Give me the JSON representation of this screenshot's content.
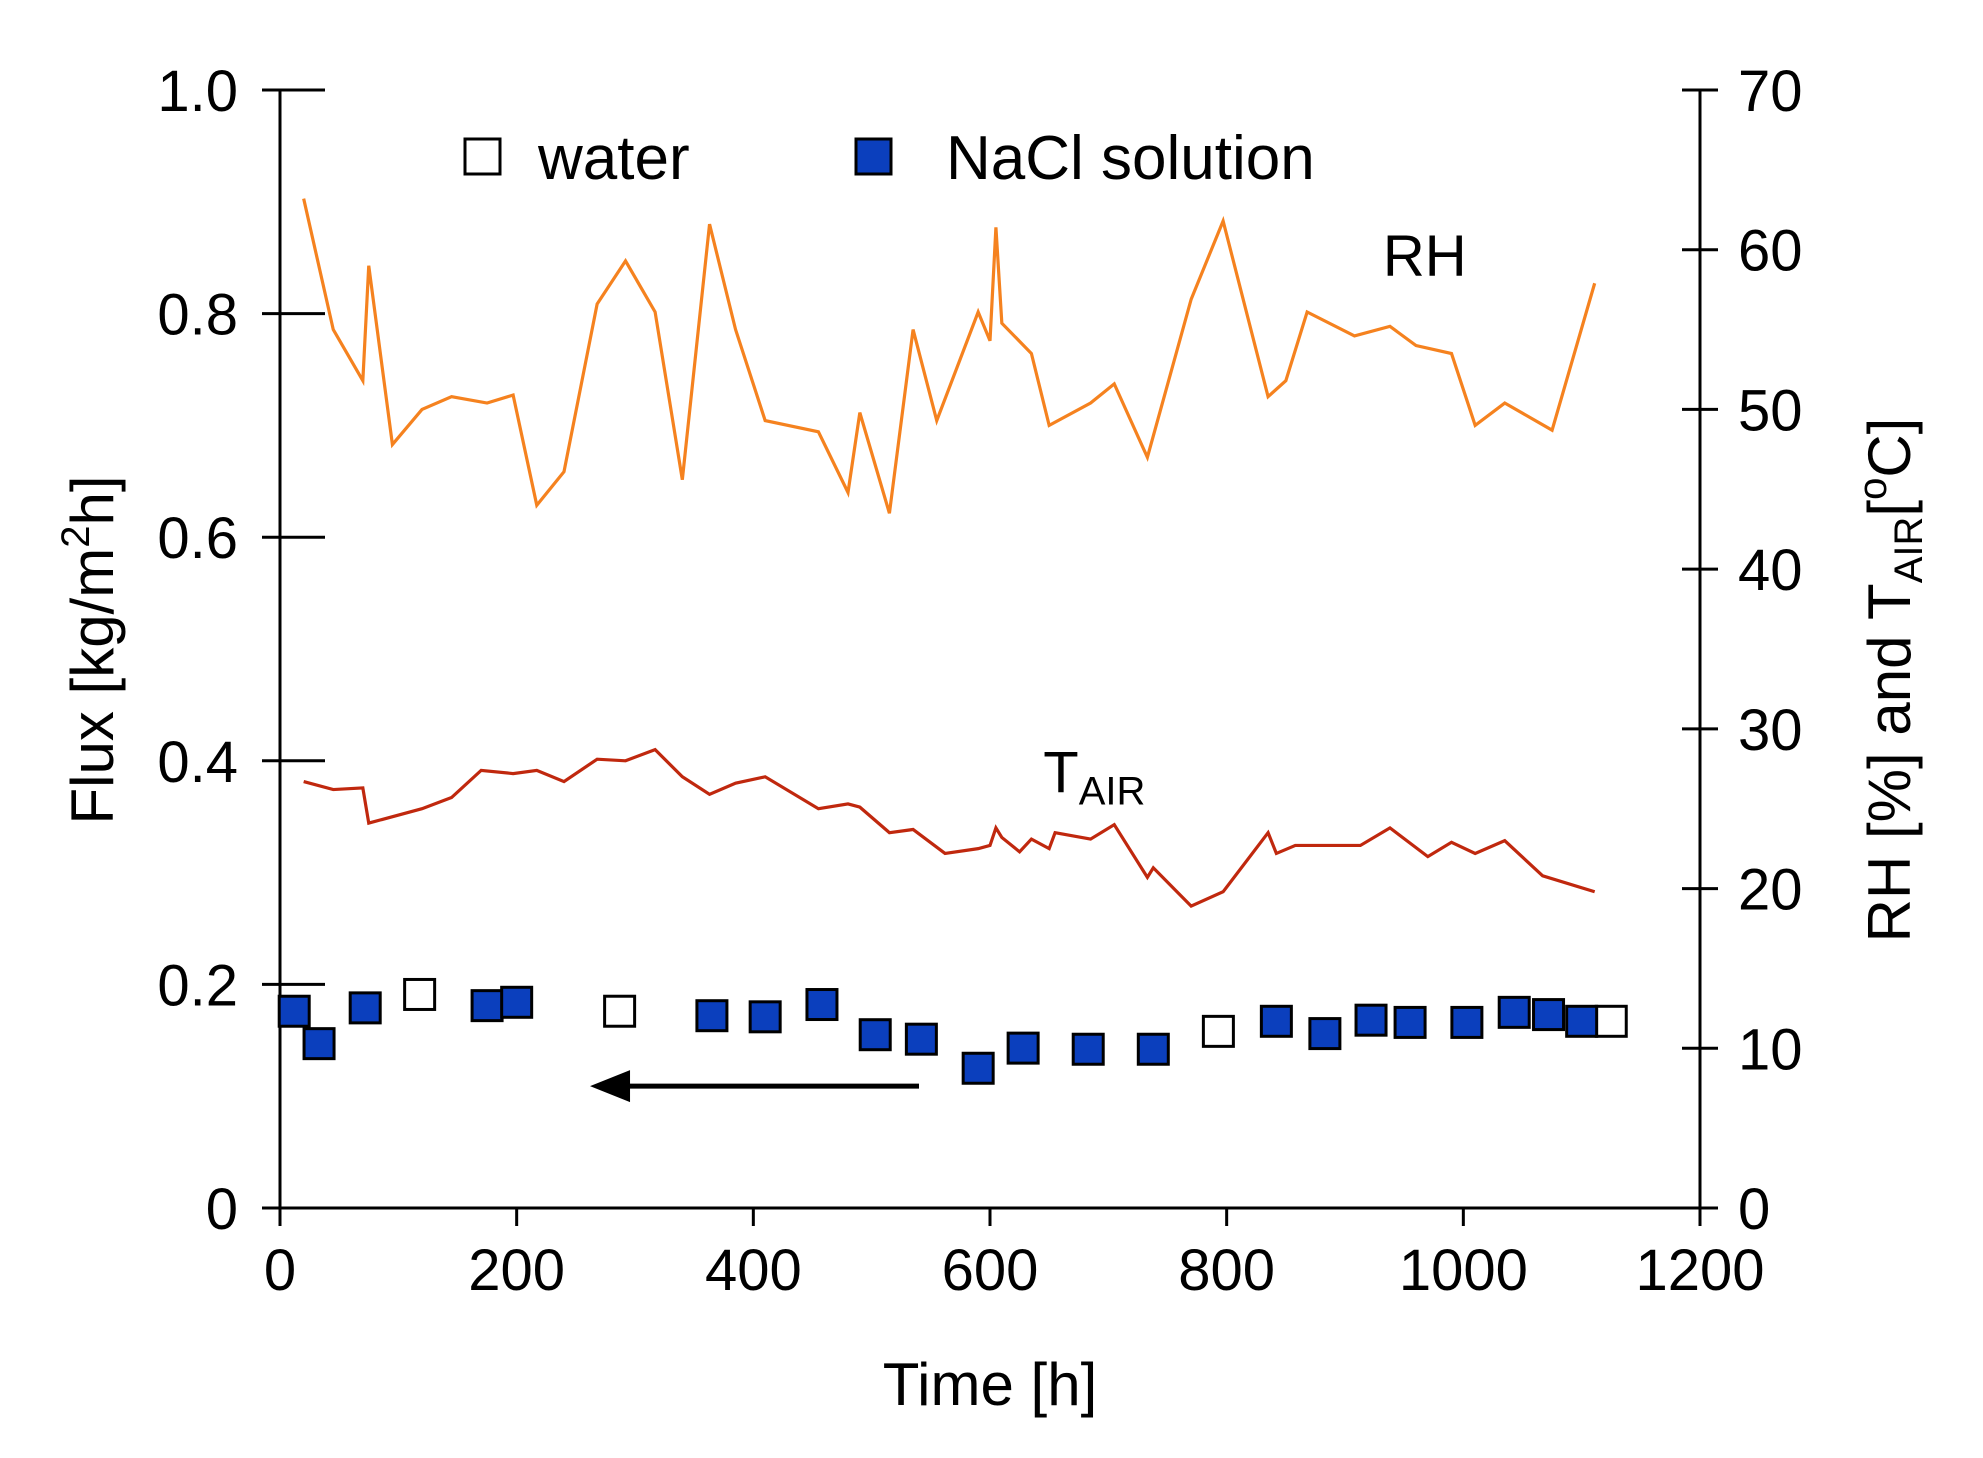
{
  "chart_data": {
    "type": "scatter",
    "title": "",
    "xlabel": "Time [h]",
    "ylabel_left": {
      "main": "Flux [kg/m",
      "sup": "2",
      "tail": "h]"
    },
    "ylabel_right": {
      "pre": "RH [%]  and T",
      "sub": "AIR",
      "post": "[",
      "sup": "o",
      "tail": "C]"
    },
    "xlim": [
      0,
      1200
    ],
    "ylim_left": [
      0,
      1.0
    ],
    "ylim_right": [
      0,
      70
    ],
    "xticks": [
      0,
      200,
      400,
      600,
      800,
      1000,
      1200
    ],
    "xtick_labels": [
      "0",
      "200",
      "400",
      "600",
      "800",
      "1000",
      "1200"
    ],
    "yticks_left": [
      0,
      0.2,
      0.4,
      0.6,
      0.8,
      1.0
    ],
    "ytick_labels_left": [
      "0",
      "0.2",
      "0.4",
      "0.6",
      "0.8",
      "1.0"
    ],
    "yticks_right": [
      0,
      10,
      20,
      30,
      40,
      50,
      60,
      70
    ],
    "ytick_labels_right": [
      "0",
      "10",
      "20",
      "30",
      "40",
      "50",
      "60",
      "70"
    ],
    "legend": {
      "position": "top",
      "entries": [
        {
          "name": "water",
          "marker": "open-square"
        },
        {
          "name": "NaCl solution",
          "marker": "filled-square"
        }
      ]
    },
    "colors": {
      "rh": "#f5821f",
      "tair": "#c0280e",
      "nacl_fill": "#0b3fbd",
      "marker_edge": "#000000",
      "water_fill": "#ffffff",
      "arrow": "#000000"
    },
    "series": [
      {
        "name": "water",
        "axis": "left",
        "marker": "open-square",
        "x": [
          118,
          287,
          793,
          1125
        ],
        "y": [
          0.191,
          0.176,
          0.158,
          0.167
        ]
      },
      {
        "name": "NaCl solution",
        "axis": "left",
        "marker": "filled-square",
        "x": [
          12,
          33,
          72,
          175,
          200,
          365,
          410,
          458,
          503,
          542,
          590,
          628,
          683,
          738,
          842,
          883,
          922,
          955,
          1003,
          1043,
          1072,
          1100
        ],
        "y": [
          0.176,
          0.147,
          0.179,
          0.181,
          0.184,
          0.172,
          0.171,
          0.182,
          0.155,
          0.151,
          0.125,
          0.143,
          0.142,
          0.142,
          0.167,
          0.156,
          0.168,
          0.166,
          0.166,
          0.175,
          0.173,
          0.167
        ]
      },
      {
        "name": "RH",
        "axis": "right",
        "type": "line",
        "label": "RH",
        "label_at": [
          932,
          58.4
        ],
        "x": [
          20,
          45,
          70,
          75,
          95,
          120,
          145,
          175,
          197,
          217,
          240,
          268,
          292,
          317,
          340,
          363,
          385,
          410,
          455,
          480,
          490,
          515,
          535,
          555,
          590,
          600,
          605,
          610,
          635,
          650,
          685,
          705,
          733,
          770,
          797,
          835,
          850,
          868,
          908,
          938,
          960,
          990,
          1010,
          1035,
          1075,
          1111
        ],
        "y": [
          63.2,
          55.0,
          51.8,
          59.0,
          47.8,
          50.0,
          50.8,
          50.4,
          50.9,
          44.0,
          46.1,
          56.6,
          59.3,
          56.1,
          45.6,
          61.6,
          55.0,
          49.3,
          48.6,
          44.8,
          49.8,
          43.5,
          55.0,
          49.3,
          56.1,
          54.3,
          61.4,
          55.4,
          53.5,
          49.0,
          50.4,
          51.6,
          47.0,
          56.9,
          61.8,
          50.8,
          51.8,
          56.1,
          54.6,
          55.2,
          54.0,
          53.5,
          49.0,
          50.4,
          48.7,
          57.9
        ]
      },
      {
        "name": "TAIR",
        "axis": "right",
        "type": "line",
        "label_main": "T",
        "label_sub": "AIR",
        "label_at": [
          645,
          26.0
        ],
        "x": [
          20,
          45,
          70,
          75,
          120,
          145,
          170,
          197,
          217,
          240,
          268,
          292,
          317,
          340,
          363,
          385,
          410,
          455,
          480,
          490,
          515,
          535,
          562,
          590,
          600,
          605,
          610,
          625,
          635,
          650,
          655,
          685,
          705,
          733,
          738,
          770,
          797,
          835,
          842,
          858,
          913,
          938,
          970,
          990,
          1010,
          1035,
          1067,
          1111
        ],
        "y": [
          26.7,
          26.2,
          26.3,
          24.1,
          25.0,
          25.7,
          27.4,
          27.2,
          27.4,
          26.7,
          28.1,
          28.0,
          28.7,
          27.0,
          25.9,
          26.6,
          27.0,
          25.0,
          25.3,
          25.1,
          23.5,
          23.7,
          22.2,
          22.5,
          22.7,
          23.8,
          23.2,
          22.3,
          23.1,
          22.5,
          23.5,
          23.1,
          24.0,
          20.7,
          21.3,
          18.9,
          19.8,
          23.5,
          22.2,
          22.7,
          22.7,
          23.8,
          22.0,
          22.9,
          22.2,
          23.0,
          20.8,
          19.8
        ]
      }
    ],
    "annotations": [
      {
        "type": "arrow",
        "direction": "left",
        "axis": "left",
        "from": [
          540,
          0.109
        ],
        "to": [
          262,
          0.109
        ]
      }
    ]
  }
}
